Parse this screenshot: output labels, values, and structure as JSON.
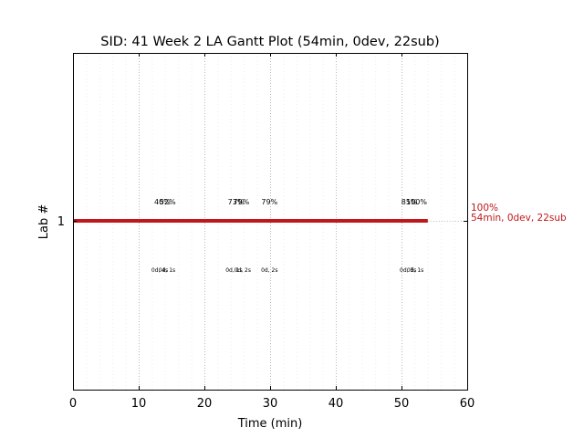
{
  "chart_data": {
    "type": "gantt",
    "title": "SID: 41 Week 2 LA Gantt Plot (54min, 0dev, 22sub)",
    "xlabel": "Time (min)",
    "ylabel": "Lab #",
    "xlim": [
      0,
      60
    ],
    "xticks": [
      "0",
      "10",
      "20",
      "30",
      "40",
      "50",
      "60"
    ],
    "yticks": [
      "1"
    ],
    "grid": true,
    "bar_color": "#c0171b",
    "bars": [
      {
        "lab": "1",
        "start": 0,
        "end": 54
      }
    ],
    "percent_annotations": [
      {
        "x": 13.6,
        "text": "40%"
      },
      {
        "x": 14.4,
        "text": "52%"
      },
      {
        "x": 24.8,
        "text": "73%"
      },
      {
        "x": 25.6,
        "text": "79%"
      },
      {
        "x": 29.9,
        "text": "79%"
      },
      {
        "x": 51.2,
        "text": "85%"
      },
      {
        "x": 52.3,
        "text": "100%"
      }
    ],
    "detail_annotations": [
      {
        "x": 13.2,
        "text": "0d, 4s"
      },
      {
        "x": 14.3,
        "text": "0d, 1s"
      },
      {
        "x": 24.5,
        "text": "0d, 1s"
      },
      {
        "x": 25.8,
        "text": "0d, 2s"
      },
      {
        "x": 29.9,
        "text": "0d, 2s"
      },
      {
        "x": 51.0,
        "text": "0d, 5s"
      },
      {
        "x": 52.1,
        "text": "0d, 1s"
      }
    ],
    "end_label": {
      "line1": "100%",
      "line2": "54min, 0dev, 22sub"
    }
  }
}
